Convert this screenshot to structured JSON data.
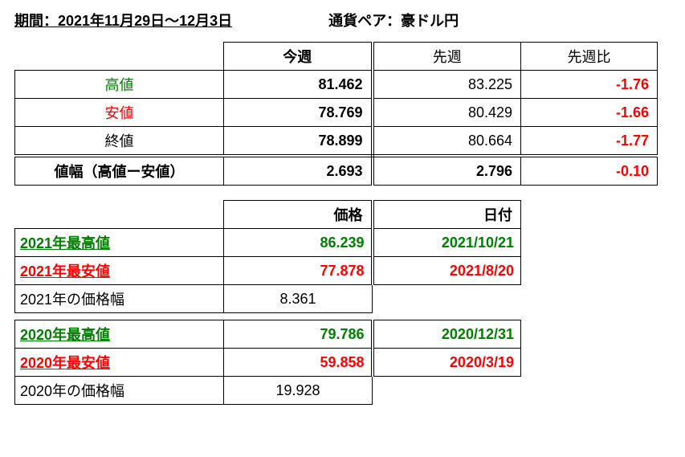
{
  "header": {
    "period_label": "期間：2021年11月29日～12月3日",
    "pair_label": "通貨ペア：豪ドル円"
  },
  "table1": {
    "col_this_week": "今週",
    "col_last_week": "先週",
    "col_diff": "先週比",
    "rows": [
      {
        "label": "高値",
        "label_color": "#008000",
        "this_week": "81.462",
        "last_week": "83.225",
        "diff": "-1.76",
        "diff_color": "#ff0000"
      },
      {
        "label": "安値",
        "label_color": "#ff0000",
        "this_week": "78.769",
        "last_week": "80.429",
        "diff": "-1.66",
        "diff_color": "#ff0000"
      },
      {
        "label": "終値",
        "label_color": "#000000",
        "this_week": "78.899",
        "last_week": "80.664",
        "diff": "-1.77",
        "diff_color": "#ff0000"
      }
    ],
    "range_label": "値幅（高値ー安値）",
    "range_this_week": "2.693",
    "range_last_week": "2.796",
    "range_diff": "-0.10",
    "range_diff_color": "#ff0000"
  },
  "table2": {
    "col_price": "価格",
    "col_date": "日付",
    "rows_2021": [
      {
        "label": "2021年最高値",
        "label_color": "#008000",
        "price": "86.239",
        "price_color": "#008000",
        "date": "2021/10/21",
        "date_color": "#008000",
        "underline": true,
        "bold": true
      },
      {
        "label": "2021年最安値",
        "label_color": "#ff0000",
        "price": "77.878",
        "price_color": "#ff0000",
        "date": "2021/8/20",
        "date_color": "#ff0000",
        "underline": true,
        "bold": true
      },
      {
        "label": "2021年の価格幅",
        "label_color": "#000000",
        "price": "8.361",
        "price_color": "#000000",
        "date": "",
        "date_color": "#000000",
        "underline": false,
        "bold": false
      }
    ],
    "rows_2020": [
      {
        "label": "2020年最高値",
        "label_color": "#008000",
        "price": "79.786",
        "price_color": "#008000",
        "date": "2020/12/31",
        "date_color": "#008000",
        "underline": true,
        "bold": true
      },
      {
        "label": "2020年最安値",
        "label_color": "#ff0000",
        "price": "59.858",
        "price_color": "#ff0000",
        "date": "2020/3/19",
        "date_color": "#ff0000",
        "underline": true,
        "bold": true
      },
      {
        "label": "2020年の価格幅",
        "label_color": "#000000",
        "price": "19.928",
        "price_color": "#000000",
        "date": "",
        "date_color": "#000000",
        "underline": false,
        "bold": false
      }
    ]
  }
}
